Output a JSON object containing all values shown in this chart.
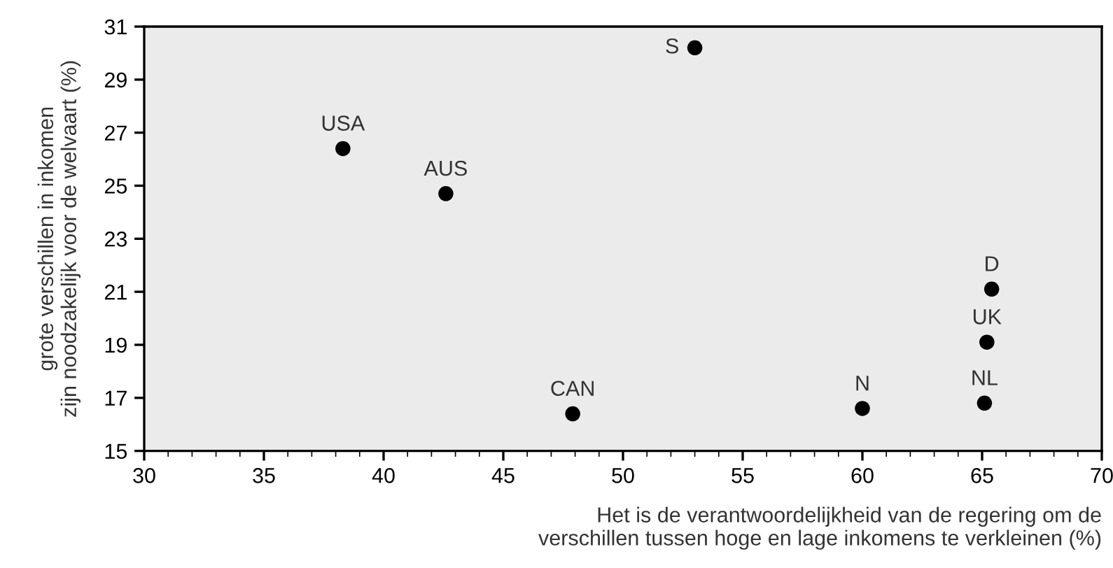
{
  "chart_data": {
    "type": "scatter",
    "xlabel": "Het is de verantwoordelijkheid van de regering om de\nverschillen tussen hoge en lage inkomens te verkleinen (%)",
    "ylabel": "grote verschillen in inkomen\nzijn noodzakelijk voor de welvaart (%)",
    "x": [
      38.3,
      42.6,
      53.0,
      47.9,
      60.0,
      65.1,
      65.2,
      65.4
    ],
    "series": [
      {
        "color": "#000000",
        "values": [
          26.4,
          24.7,
          30.2,
          16.4,
          16.6,
          16.8,
          19.1,
          21.1
        ]
      }
    ],
    "annotations": [
      {
        "text": "USA",
        "x": 38.3,
        "y": 26.4
      },
      {
        "text": "AUS",
        "x": 42.6,
        "y": 24.7
      },
      {
        "text": "S",
        "x": 53.0,
        "y": 30.2
      },
      {
        "text": "CAN",
        "x": 47.9,
        "y": 16.4
      },
      {
        "text": "N",
        "x": 60.0,
        "y": 16.6
      },
      {
        "text": "NL",
        "x": 65.1,
        "y": 16.8
      },
      {
        "text": "UK",
        "x": 65.2,
        "y": 19.1
      },
      {
        "text": "D",
        "x": 65.4,
        "y": 21.1
      }
    ],
    "xlim": [
      30,
      70
    ],
    "xticks": [
      30,
      35,
      40,
      45,
      50,
      55,
      60,
      65,
      70
    ],
    "ylim": [
      15,
      31
    ],
    "yticks": [
      15,
      17,
      19,
      21,
      23,
      25,
      27,
      29,
      31
    ],
    "grid": false,
    "legend": false,
    "marker": "circle"
  }
}
